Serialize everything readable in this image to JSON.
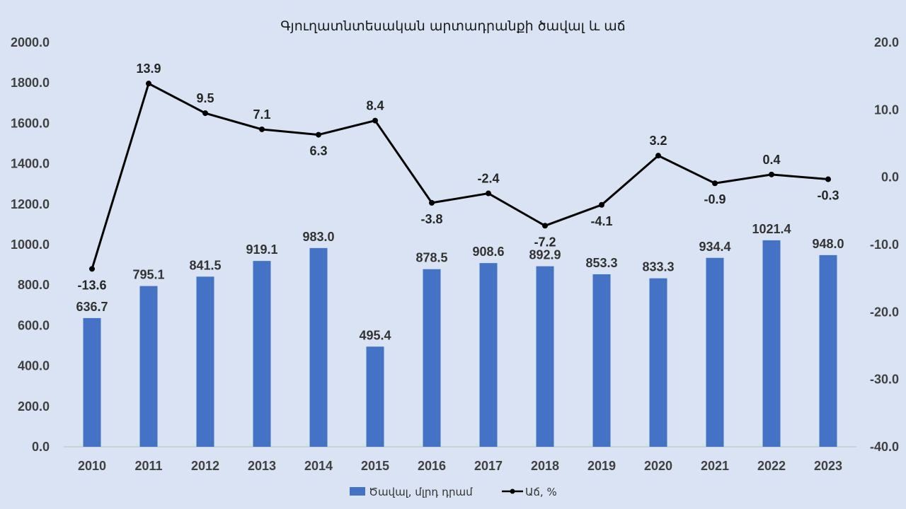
{
  "chart_data": {
    "type": "bar",
    "title": "Գյուղատնտեսական արտադրանքի ծավալ և աճ",
    "categories": [
      "2010",
      "2011",
      "2012",
      "2013",
      "2014",
      "2015",
      "2016",
      "2017",
      "2018",
      "2019",
      "2020",
      "2021",
      "2022",
      "2023"
    ],
    "series": [
      {
        "name": "Ծավալ, մլրդ դրամ",
        "type": "bar",
        "axis": "left",
        "color": "#4472c4",
        "values": [
          636.7,
          795.1,
          841.5,
          919.1,
          983.0,
          495.4,
          878.5,
          908.6,
          892.9,
          853.3,
          833.3,
          934.4,
          1021.4,
          948.0
        ],
        "labels": [
          "636.7",
          "795.1",
          "841.5",
          "919.1",
          "983.0",
          "495.4",
          "878.5",
          "908.6",
          "892.9",
          "853.3",
          "833.3",
          "934.4",
          "1021.4",
          "948.0"
        ]
      },
      {
        "name": "Աճ, %",
        "type": "line",
        "axis": "right",
        "color": "#000000",
        "values": [
          -13.6,
          13.9,
          9.5,
          7.1,
          6.3,
          8.4,
          -3.8,
          -2.4,
          -7.2,
          -4.1,
          3.2,
          -0.9,
          0.4,
          -0.3
        ],
        "labels": [
          "-13.6",
          "13.9",
          "9.5",
          "7.1",
          "6.3",
          "8.4",
          "-3.8",
          "-2.4",
          "-7.2",
          "-4.1",
          "3.2",
          "-0.9",
          "0.4",
          "-0.3"
        ]
      }
    ],
    "y_left": {
      "min": 0,
      "max": 2000,
      "ticks": [
        "0.0",
        "200.0",
        "400.0",
        "600.0",
        "800.0",
        "1000.0",
        "1200.0",
        "1400.0",
        "1600.0",
        "1800.0",
        "2000.0"
      ]
    },
    "y_right": {
      "min": -40,
      "max": 20,
      "ticks": [
        "-40.0",
        "-30.0",
        "-20.0",
        "-10.0",
        "0.0",
        "10.0",
        "20.0"
      ]
    },
    "highlight_color": "#ff0000",
    "highlight_last": true,
    "grid": false,
    "legend_position": "bottom-center",
    "background": "#dae3f3"
  }
}
